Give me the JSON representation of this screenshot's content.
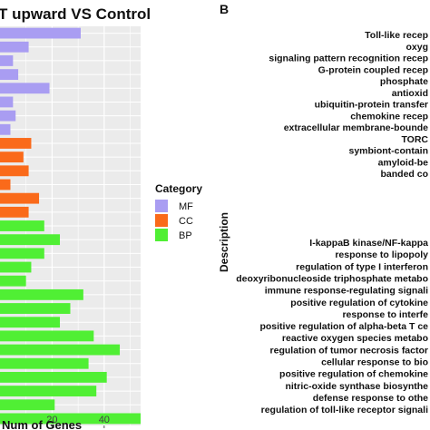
{
  "chart_data": [
    {
      "type": "bar",
      "orientation": "horizontal",
      "title": "T upward VS Control",
      "xlabel": "Num of Genes",
      "x_ticks": [
        "20",
        "40"
      ],
      "xlim": [
        0,
        54
      ],
      "grid": true,
      "legend": {
        "title": "Category",
        "placement": "right",
        "entries": [
          {
            "name": "MF",
            "color": "#a99df2"
          },
          {
            "name": "CC",
            "color": "#fa6a1a"
          },
          {
            "name": "BP",
            "color": "#50ef34"
          }
        ]
      },
      "bars": [
        {
          "category": "MF",
          "value": 31
        },
        {
          "category": "MF",
          "value": 11
        },
        {
          "category": "MF",
          "value": 5
        },
        {
          "category": "MF",
          "value": 7
        },
        {
          "category": "MF",
          "value": 19
        },
        {
          "category": "MF",
          "value": 5
        },
        {
          "category": "MF",
          "value": 6
        },
        {
          "category": "MF",
          "value": 4
        },
        {
          "category": "CC",
          "value": 12
        },
        {
          "category": "CC",
          "value": 9
        },
        {
          "category": "CC",
          "value": 11
        },
        {
          "category": "CC",
          "value": 4
        },
        {
          "category": "CC",
          "value": 15
        },
        {
          "category": "CC",
          "value": 11
        },
        {
          "category": "BP",
          "value": 17
        },
        {
          "category": "BP",
          "value": 23
        },
        {
          "category": "BP",
          "value": 17
        },
        {
          "category": "BP",
          "value": 12
        },
        {
          "category": "BP",
          "value": 10
        },
        {
          "category": "BP",
          "value": 32
        },
        {
          "category": "BP",
          "value": 27
        },
        {
          "category": "BP",
          "value": 23
        },
        {
          "category": "BP",
          "value": 36
        },
        {
          "category": "BP",
          "value": 46
        },
        {
          "category": "BP",
          "value": 34
        },
        {
          "category": "BP",
          "value": 41
        },
        {
          "category": "BP",
          "value": 37
        },
        {
          "category": "BP",
          "value": 21
        },
        {
          "category": "BP",
          "value": 54
        }
      ]
    },
    {
      "type": "bar",
      "panel_label": "B",
      "ylabel": "Description",
      "y_labels_top": [
        "Toll-like recep",
        "oxyg",
        "signaling pattern recognition recep",
        "G-protein coupled recep",
        "phosphate",
        "antioxid",
        "ubiquitin-protein transfer",
        "chemokine recep",
        "extracellular membrane-bounde",
        "TORC",
        "symbiont-contain",
        "amyloid-be",
        "banded co"
      ],
      "y_labels_bottom": [
        "I-kappaB kinase/NF-kappa",
        "response to lipopoly",
        "regulation of type I interferon",
        "deoxyribonucleoside triphosphate metabo",
        "immune response-regulating signali",
        "positive regulation of cytokine",
        "response to interfe",
        "positive regulation of alpha-beta T ce",
        "reactive oxygen species metabo",
        "regulation of tumor necrosis factor",
        "cellular response to bio",
        "positive regulation of chemokine",
        "nitric-oxide synthase biosynthe",
        "defense response to othe",
        "regulation of toll-like receptor signali"
      ]
    }
  ]
}
